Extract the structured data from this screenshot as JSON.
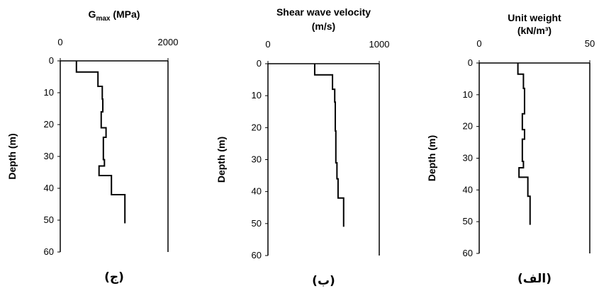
{
  "chart_data": [
    {
      "type": "line",
      "panel": "left",
      "title_main": "G",
      "title_sub": "max",
      "title_rest": " (MPa)",
      "title_line2": "",
      "ylabel": "Depth (m)",
      "caption": "(ج)",
      "xlim": [
        0,
        2000
      ],
      "x_ticks": [
        0,
        2000
      ],
      "ylim": [
        0,
        60
      ],
      "y_ticks": [
        0,
        10,
        20,
        30,
        40,
        50,
        60
      ],
      "steps": [
        {
          "x": 300,
          "top": 0,
          "bottom": 3.5
        },
        {
          "x": 700,
          "top": 3.5,
          "bottom": 8
        },
        {
          "x": 780,
          "top": 8,
          "bottom": 12
        },
        {
          "x": 790,
          "top": 12,
          "bottom": 16
        },
        {
          "x": 760,
          "top": 16,
          "bottom": 21
        },
        {
          "x": 850,
          "top": 21,
          "bottom": 24
        },
        {
          "x": 800,
          "top": 24,
          "bottom": 31
        },
        {
          "x": 820,
          "top": 31,
          "bottom": 33
        },
        {
          "x": 720,
          "top": 33,
          "bottom": 36
        },
        {
          "x": 950,
          "top": 36,
          "bottom": 42
        },
        {
          "x": 1200,
          "top": 42,
          "bottom": 51
        }
      ]
    },
    {
      "type": "line",
      "panel": "middle",
      "title_main": "Shear wave velocity",
      "title_sub": "",
      "title_rest": "",
      "title_line2": "(m/s)",
      "ylabel": "Depth (m)",
      "caption": "(ب)",
      "xlim": [
        0,
        1000
      ],
      "x_ticks": [
        0,
        1000
      ],
      "ylim": [
        0,
        60
      ],
      "y_ticks": [
        0,
        10,
        20,
        30,
        40,
        50,
        60
      ],
      "steps": [
        {
          "x": 420,
          "top": 0,
          "bottom": 3.5
        },
        {
          "x": 580,
          "top": 3.5,
          "bottom": 8
        },
        {
          "x": 600,
          "top": 8,
          "bottom": 12
        },
        {
          "x": 605,
          "top": 12,
          "bottom": 21
        },
        {
          "x": 610,
          "top": 21,
          "bottom": 31
        },
        {
          "x": 620,
          "top": 31,
          "bottom": 36
        },
        {
          "x": 630,
          "top": 36,
          "bottom": 42
        },
        {
          "x": 680,
          "top": 42,
          "bottom": 51
        }
      ]
    },
    {
      "type": "line",
      "panel": "right",
      "title_main": "Unit weight",
      "title_sub": "",
      "title_rest": "",
      "title_line2": "(kN/m³)",
      "ylabel": "Depth (m)",
      "caption": "(الف)",
      "xlim": [
        0,
        50
      ],
      "x_ticks": [
        0,
        50
      ],
      "ylim": [
        0,
        60
      ],
      "y_ticks": [
        0,
        10,
        20,
        30,
        40,
        50,
        60
      ],
      "steps": [
        {
          "x": 17.5,
          "top": 0,
          "bottom": 3.5
        },
        {
          "x": 20,
          "top": 3.5,
          "bottom": 8
        },
        {
          "x": 20.5,
          "top": 8,
          "bottom": 16
        },
        {
          "x": 19.5,
          "top": 16,
          "bottom": 21
        },
        {
          "x": 20.5,
          "top": 21,
          "bottom": 24
        },
        {
          "x": 19.5,
          "top": 24,
          "bottom": 31
        },
        {
          "x": 20,
          "top": 31,
          "bottom": 33
        },
        {
          "x": 18,
          "top": 33,
          "bottom": 36
        },
        {
          "x": 22,
          "top": 36,
          "bottom": 42
        },
        {
          "x": 23,
          "top": 42,
          "bottom": 51
        }
      ]
    }
  ]
}
